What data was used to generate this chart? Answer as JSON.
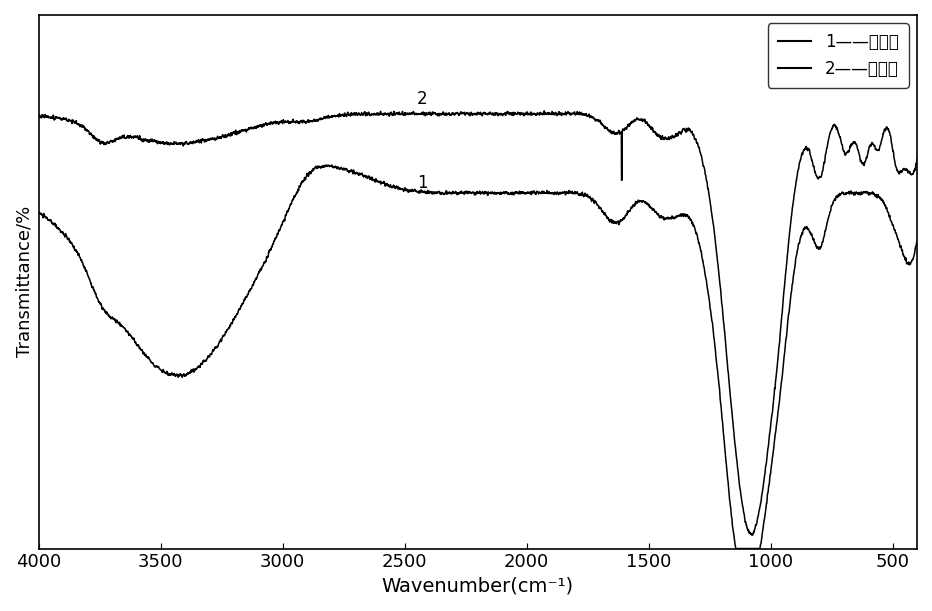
{
  "title": "",
  "xlabel": "Wavenumber(cm⁻¹)",
  "ylabel": "Transmittance/%",
  "xlim": [
    4000,
    400
  ],
  "legend_labels": [
    "1——改性前",
    "2——改性后"
  ],
  "xticks": [
    4000,
    3500,
    3000,
    2500,
    2000,
    1500,
    1000,
    500
  ],
  "line_color": "#000000",
  "background": "#ffffff",
  "label1": "1",
  "label2": "2"
}
